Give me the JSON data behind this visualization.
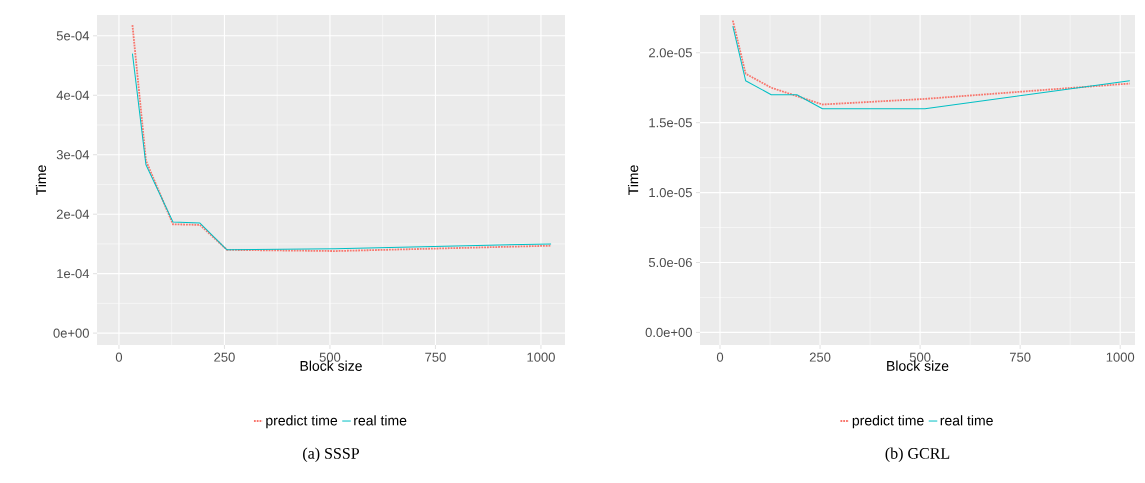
{
  "chart_data": [
    {
      "type": "line",
      "xlabel": "Block size",
      "ylabel": "Time",
      "annotations": [
        "(a)  SSSP"
      ],
      "x": [
        32,
        64,
        128,
        192,
        256,
        512,
        1024
      ],
      "series": [
        {
          "name": "predict time",
          "color": "#f8766d",
          "line_style": "dotted",
          "values": [
            0.000518,
            0.00029,
            0.000183,
            0.000182,
            0.00014,
            0.000138,
            0.000147
          ]
        },
        {
          "name": "real time",
          "color": "#00bfc4",
          "line_style": "solid",
          "values": [
            0.00047,
            0.000283,
            0.000187,
            0.000185,
            0.00014,
            0.000142,
            0.00015
          ]
        }
      ],
      "xlim": [
        -52,
        1057
      ],
      "ylim": [
        -2e-05,
        0.000535
      ],
      "xticks": [
        0,
        250,
        500,
        750,
        1000
      ],
      "yticks": [
        {
          "value": 0,
          "label": "0e+00"
        },
        {
          "value": 0.0001,
          "label": "1e-04"
        },
        {
          "value": 0.0002,
          "label": "2e-04"
        },
        {
          "value": 0.0003,
          "label": "3e-04"
        },
        {
          "value": 0.0004,
          "label": "4e-04"
        },
        {
          "value": 0.0005,
          "label": "5e-04"
        }
      ],
      "grid": true,
      "legend": "bottom",
      "marker": "none"
    },
    {
      "type": "line",
      "xlabel": "Block size",
      "ylabel": "Time",
      "annotations": [
        "(b)  GCRL"
      ],
      "x": [
        32,
        64,
        128,
        192,
        256,
        512,
        1024
      ],
      "series": [
        {
          "name": "predict time",
          "color": "#f8766d",
          "line_style": "dotted",
          "values": [
            2.23e-05,
            1.85e-05,
            1.75e-05,
            1.69e-05,
            1.63e-05,
            1.67e-05,
            1.78e-05
          ]
        },
        {
          "name": "real time",
          "color": "#00bfc4",
          "line_style": "solid",
          "values": [
            2.19e-05,
            1.8e-05,
            1.7e-05,
            1.7e-05,
            1.6e-05,
            1.6e-05,
            1.8e-05
          ]
        }
      ],
      "xlim": [
        -50,
        1037
      ],
      "ylim": [
        -9e-07,
        2.27e-05
      ],
      "xticks": [
        0,
        250,
        500,
        750,
        1000
      ],
      "yticks": [
        {
          "value": 0,
          "label": "0.0e+00"
        },
        {
          "value": 5e-06,
          "label": "5.0e-06"
        },
        {
          "value": 1e-05,
          "label": "1.0e-05"
        },
        {
          "value": 1.5e-05,
          "label": "1.5e-05"
        },
        {
          "value": 2e-05,
          "label": "2.0e-05"
        }
      ],
      "grid": true,
      "legend": "bottom",
      "marker": "none"
    }
  ]
}
